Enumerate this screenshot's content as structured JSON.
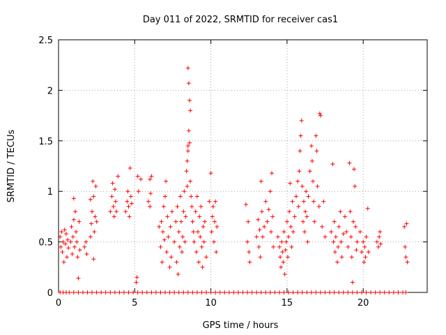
{
  "chart_data": {
    "type": "scatter",
    "title": "Day 011 of 2022, SRMTID for receiver cas1",
    "xlabel": "GPS time / hours",
    "ylabel": "SRMTID / TECUs",
    "xlim": [
      0,
      24.2
    ],
    "ylim": [
      0,
      2.5
    ],
    "xticks": [
      0,
      5,
      10,
      15,
      20
    ],
    "xtick_labels": [
      "0",
      "5",
      "10",
      "15",
      "20"
    ],
    "yticks": [
      0,
      0.5,
      1,
      1.5,
      2,
      2.5
    ],
    "ytick_labels": [
      "0",
      "0.5",
      "1",
      "1.5",
      "2",
      "2.5"
    ],
    "grid": true,
    "marker": "+",
    "color": "#ff0000",
    "series": [
      {
        "name": "SRMTID",
        "points": [
          [
            0.1,
            0.55
          ],
          [
            0.15,
            0.45
          ],
          [
            0.2,
            0.6
          ],
          [
            0.25,
            0.4
          ],
          [
            0.3,
            0.5
          ],
          [
            0.35,
            0.3
          ],
          [
            0.4,
            0.62
          ],
          [
            0.45,
            0.48
          ],
          [
            0.5,
            0.58
          ],
          [
            0.55,
            0.35
          ],
          [
            0.6,
            0.52
          ],
          [
            0.65,
            0.44
          ],
          [
            0.8,
            0.5
          ],
          [
            0.85,
            0.65
          ],
          [
            0.9,
            0.38
          ],
          [
            0.95,
            0.55
          ],
          [
            1.0,
            0.72
          ],
          [
            1.05,
            0.45
          ],
          [
            1.1,
            0.8
          ],
          [
            1.15,
            0.6
          ],
          [
            1.2,
            0.5
          ],
          [
            1.25,
            0.35
          ],
          [
            1.3,
            0.14
          ],
          [
            1.35,
            0.7
          ],
          [
            1.0,
            0.93
          ],
          [
            1.4,
            0.42
          ],
          [
            1.7,
            0.45
          ],
          [
            1.8,
            0.5
          ],
          [
            1.85,
            0.38
          ],
          [
            2.1,
            0.55
          ],
          [
            2.15,
            0.68
          ],
          [
            2.2,
            0.8
          ],
          [
            2.25,
            1.1
          ],
          [
            2.3,
            0.95
          ],
          [
            2.35,
            0.6
          ],
          [
            2.4,
            0.75
          ],
          [
            2.45,
            1.05
          ],
          [
            2.3,
            0.33
          ],
          [
            2.5,
            0.7
          ],
          [
            2.1,
            0.92
          ],
          [
            3.4,
            0.8
          ],
          [
            3.5,
            0.95
          ],
          [
            3.55,
            1.08
          ],
          [
            3.6,
            0.85
          ],
          [
            3.65,
            0.75
          ],
          [
            3.7,
            1.02
          ],
          [
            3.75,
            0.9
          ],
          [
            3.8,
            0.8
          ],
          [
            3.9,
            1.15
          ],
          [
            4.4,
            0.8
          ],
          [
            4.5,
            0.9
          ],
          [
            4.55,
            1.0
          ],
          [
            4.6,
            0.85
          ],
          [
            4.65,
            0.75
          ],
          [
            4.7,
            1.23
          ],
          [
            4.75,
            0.95
          ],
          [
            4.8,
            0.88
          ],
          [
            5.1,
            0.1
          ],
          [
            5.15,
            0.15
          ],
          [
            5.2,
            1.15
          ],
          [
            5.25,
            1.0
          ],
          [
            5.4,
            1.12
          ],
          [
            5.9,
            0.9
          ],
          [
            6.0,
            1.12
          ],
          [
            6.05,
            0.98
          ],
          [
            6.1,
            1.15
          ],
          [
            6.0,
            0.85
          ],
          [
            6.6,
            0.65
          ],
          [
            6.7,
            0.45
          ],
          [
            6.75,
            0.7
          ],
          [
            6.8,
            0.3
          ],
          [
            6.85,
            0.6
          ],
          [
            6.9,
            0.85
          ],
          [
            6.95,
            0.52
          ],
          [
            7.0,
            0.95
          ],
          [
            7.05,
            1.1
          ],
          [
            7.1,
            0.4
          ],
          [
            7.15,
            0.75
          ],
          [
            7.2,
            0.55
          ],
          [
            7.3,
            0.25
          ],
          [
            7.35,
            0.65
          ],
          [
            7.4,
            0.35
          ],
          [
            7.45,
            0.8
          ],
          [
            7.6,
            0.5
          ],
          [
            7.7,
            0.7
          ],
          [
            7.75,
            0.3
          ],
          [
            7.8,
            0.85
          ],
          [
            7.85,
            0.18
          ],
          [
            7.9,
            0.6
          ],
          [
            7.95,
            0.45
          ],
          [
            8.0,
            0.95
          ],
          [
            8.05,
            0.7
          ],
          [
            8.1,
            0.4
          ],
          [
            8.15,
            0.55
          ],
          [
            8.2,
            0.8
          ],
          [
            8.25,
            1.0
          ],
          [
            8.3,
            0.5
          ],
          [
            8.35,
            0.75
          ],
          [
            8.4,
            1.2
          ],
          [
            8.45,
            1.3
          ],
          [
            8.5,
            1.45
          ],
          [
            8.55,
            1.6
          ],
          [
            8.6,
            1.48
          ],
          [
            8.65,
            1.1
          ],
          [
            8.7,
            0.95
          ],
          [
            8.5,
            2.22
          ],
          [
            8.55,
            2.07
          ],
          [
            8.6,
            1.9
          ],
          [
            8.65,
            1.8
          ],
          [
            8.5,
            1.4
          ],
          [
            8.45,
            1.05
          ],
          [
            8.75,
            0.85
          ],
          [
            8.8,
            0.7
          ],
          [
            8.85,
            0.6
          ],
          [
            8.9,
            0.5
          ],
          [
            9.0,
            0.8
          ],
          [
            9.05,
            0.4
          ],
          [
            9.1,
            0.95
          ],
          [
            9.15,
            0.6
          ],
          [
            9.2,
            0.3
          ],
          [
            9.25,
            0.75
          ],
          [
            9.3,
            0.55
          ],
          [
            9.35,
            0.85
          ],
          [
            9.4,
            0.45
          ],
          [
            9.45,
            0.25
          ],
          [
            9.5,
            0.65
          ],
          [
            9.55,
            0.5
          ],
          [
            9.6,
            0.7
          ],
          [
            9.7,
            0.35
          ],
          [
            9.9,
            0.9
          ],
          [
            10.0,
            1.18
          ],
          [
            10.05,
            0.6
          ],
          [
            10.1,
            0.75
          ],
          [
            10.15,
            0.85
          ],
          [
            10.2,
            0.5
          ],
          [
            10.25,
            0.7
          ],
          [
            10.3,
            0.9
          ],
          [
            10.35,
            0.4
          ],
          [
            10.4,
            0.65
          ],
          [
            12.3,
            0.87
          ],
          [
            12.4,
            0.5
          ],
          [
            12.45,
            0.7
          ],
          [
            12.5,
            0.4
          ],
          [
            12.55,
            0.3
          ],
          [
            13.0,
            0.55
          ],
          [
            13.1,
            0.72
          ],
          [
            13.15,
            0.45
          ],
          [
            13.2,
            0.62
          ],
          [
            13.25,
            0.35
          ],
          [
            13.3,
            1.1
          ],
          [
            13.35,
            0.8
          ],
          [
            13.4,
            0.55
          ],
          [
            13.5,
            0.65
          ],
          [
            13.6,
            0.9
          ],
          [
            13.7,
            0.7
          ],
          [
            13.8,
            0.82
          ],
          [
            13.9,
            1.0
          ],
          [
            13.95,
            0.6
          ],
          [
            14.0,
            1.18
          ],
          [
            14.05,
            0.75
          ],
          [
            14.1,
            0.45
          ],
          [
            14.4,
            0.55
          ],
          [
            14.5,
            0.45
          ],
          [
            14.55,
            0.35
          ],
          [
            14.6,
            0.25
          ],
          [
            14.65,
            0.5
          ],
          [
            14.7,
            0.4
          ],
          [
            14.75,
            0.3
          ],
          [
            14.8,
            0.6
          ],
          [
            14.85,
            0.18
          ],
          [
            14.9,
            0.42
          ],
          [
            14.95,
            0.5
          ],
          [
            15.0,
            0.7
          ],
          [
            15.05,
            0.35
          ],
          [
            15.1,
            0.55
          ],
          [
            15.15,
            0.8
          ],
          [
            15.2,
            1.08
          ],
          [
            15.25,
            0.65
          ],
          [
            15.3,
            0.45
          ],
          [
            15.35,
            0.9
          ],
          [
            15.4,
            0.6
          ],
          [
            15.5,
            0.75
          ],
          [
            15.6,
            0.95
          ],
          [
            15.7,
            1.1
          ],
          [
            15.75,
            0.85
          ],
          [
            15.8,
            1.2
          ],
          [
            15.85,
            1.4
          ],
          [
            15.9,
            1.55
          ],
          [
            15.95,
            1.7
          ],
          [
            16.0,
            1.05
          ],
          [
            16.05,
            0.7
          ],
          [
            16.1,
            0.9
          ],
          [
            16.15,
            0.6
          ],
          [
            16.2,
            0.8
          ],
          [
            16.25,
            1.0
          ],
          [
            16.3,
            0.75
          ],
          [
            16.35,
            0.5
          ],
          [
            16.4,
            0.95
          ],
          [
            16.5,
            1.2
          ],
          [
            16.6,
            1.45
          ],
          [
            16.65,
            1.3
          ],
          [
            16.7,
            1.1
          ],
          [
            16.75,
            0.9
          ],
          [
            16.8,
            0.7
          ],
          [
            16.9,
            1.55
          ],
          [
            16.95,
            1.4
          ],
          [
            17.0,
            1.05
          ],
          [
            17.1,
            0.85
          ],
          [
            17.15,
            1.77
          ],
          [
            17.2,
            1.75
          ],
          [
            17.3,
            0.65
          ],
          [
            17.4,
            0.9
          ],
          [
            17.5,
            0.55
          ],
          [
            17.9,
            0.6
          ],
          [
            18.0,
            1.27
          ],
          [
            18.05,
            0.5
          ],
          [
            18.1,
            0.7
          ],
          [
            18.15,
            0.4
          ],
          [
            18.2,
            0.55
          ],
          [
            18.3,
            0.3
          ],
          [
            18.35,
            0.45
          ],
          [
            18.4,
            0.65
          ],
          [
            18.5,
            0.8
          ],
          [
            18.55,
            0.5
          ],
          [
            18.6,
            0.35
          ],
          [
            18.7,
            0.58
          ],
          [
            18.8,
            0.75
          ],
          [
            18.9,
            0.6
          ],
          [
            19.0,
            0.45
          ],
          [
            19.1,
            1.28
          ],
          [
            19.15,
            0.8
          ],
          [
            19.2,
            0.55
          ],
          [
            19.25,
            0.35
          ],
          [
            19.3,
            0.1
          ],
          [
            19.35,
            0.7
          ],
          [
            19.4,
            1.22
          ],
          [
            19.45,
            1.05
          ],
          [
            19.5,
            0.65
          ],
          [
            19.55,
            0.42
          ],
          [
            19.6,
            0.5
          ],
          [
            19.8,
            0.6
          ],
          [
            19.9,
            0.4
          ],
          [
            20.0,
            0.5
          ],
          [
            20.05,
            0.3
          ],
          [
            20.1,
            0.45
          ],
          [
            20.15,
            0.35
          ],
          [
            20.2,
            0.55
          ],
          [
            20.3,
            0.83
          ],
          [
            20.35,
            0.4
          ],
          [
            20.9,
            0.5
          ],
          [
            21.0,
            0.45
          ],
          [
            21.05,
            0.55
          ],
          [
            21.1,
            0.6
          ],
          [
            21.15,
            0.48
          ],
          [
            22.7,
            0.65
          ],
          [
            22.75,
            0.45
          ],
          [
            22.8,
            0.35
          ],
          [
            22.85,
            0.68
          ],
          [
            22.9,
            0.3
          ]
        ],
        "zero_points_x": [
          0.1,
          0.3,
          0.5,
          0.7,
          1.0,
          1.3,
          1.6,
          1.9,
          2.2,
          2.5,
          2.8,
          3.1,
          3.4,
          3.7,
          4.0,
          4.3,
          4.6,
          4.9,
          5.2,
          5.5,
          5.8,
          6.1,
          6.4,
          6.7,
          7.0,
          7.3,
          7.6,
          7.9,
          8.2,
          8.5,
          8.8,
          9.1,
          9.4,
          9.7,
          10.0,
          10.3,
          10.6,
          10.9,
          11.2,
          11.5,
          11.8,
          12.1,
          12.4,
          12.7,
          13.0,
          13.3,
          13.6,
          13.9,
          14.2,
          14.5,
          14.8,
          15.1,
          15.4,
          15.7,
          16.0,
          16.3,
          16.6,
          16.9,
          17.2,
          17.5,
          17.8,
          18.1,
          18.4,
          18.7,
          19.0,
          19.3,
          19.6,
          19.9,
          20.2,
          20.5,
          20.8,
          21.1,
          21.4,
          21.7,
          22.0,
          22.3,
          22.6,
          22.8
        ]
      }
    ]
  }
}
